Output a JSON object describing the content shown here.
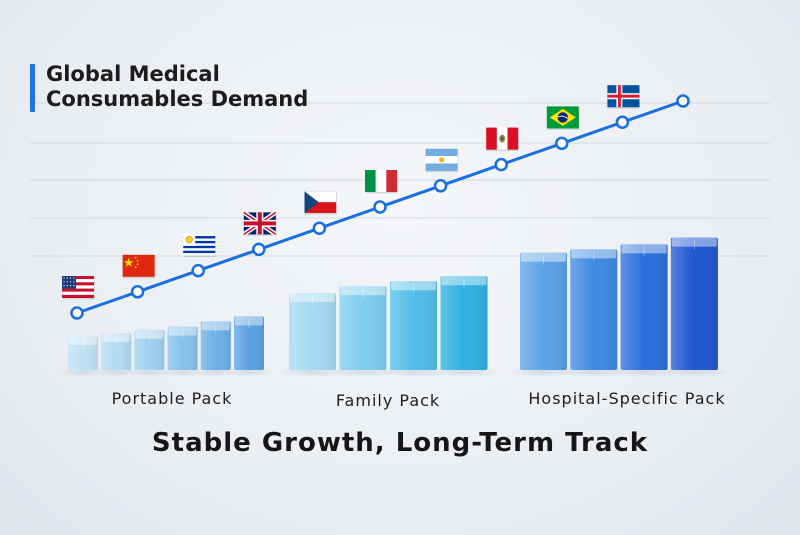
{
  "title_lines": [
    "Global Medical",
    "Consumables Demand"
  ],
  "subtitle": "Stable Growth, Long-Term Track",
  "colors": {
    "accent": "#1a73e8",
    "line": "#1a6fe0"
  },
  "chart_data": {
    "type": "bar",
    "title": "Global Medical Consumables Demand",
    "subtitle": "Stable Growth, Long-Term Track",
    "groups": [
      {
        "name": "Portable Pack",
        "bars": [
          1.0,
          1.1,
          1.2,
          1.3,
          1.45,
          1.6
        ],
        "colors": [
          "#bfe0f5",
          "#b2daf3",
          "#9fd0f0",
          "#86c2ec",
          "#6cb0e6",
          "#5aa0e2"
        ]
      },
      {
        "name": "Family Pack",
        "bars": [
          2.3,
          2.5,
          2.65,
          2.8
        ],
        "colors": [
          "#a4daf2",
          "#7fcdee",
          "#52bde8",
          "#2fb0e2"
        ]
      },
      {
        "name": "Hospital-Specific Pack",
        "bars": [
          3.5,
          3.6,
          3.75,
          3.95
        ],
        "colors": [
          "#5aa2e6",
          "#3f8ae2",
          "#2a6fdc",
          "#1f56d0"
        ]
      }
    ],
    "line": {
      "values": [
        1,
        2,
        3,
        4,
        5,
        6,
        7,
        8,
        9,
        10,
        11
      ],
      "flags": [
        "usa-flag",
        "china-flag",
        "uruguay-flag",
        "uk-flag",
        "czech-flag",
        "italy-flag",
        "argentina-flag",
        "peru-flag",
        "brazil-flag",
        "iceland-flag"
      ]
    },
    "grid": true,
    "legend": "none"
  }
}
